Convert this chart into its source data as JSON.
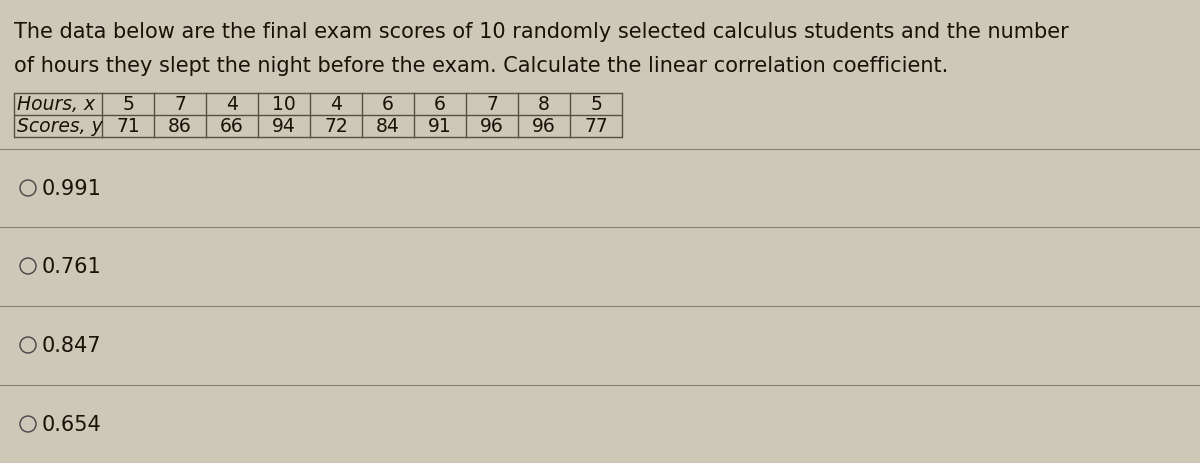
{
  "title_line1": "The data below are the final exam scores of 10 randomly selected calculus students and the number",
  "title_line2": "of hours they slept the night before the exam. Calculate the linear correlation coefficient.",
  "row1_label": "Hours, x",
  "row2_label": "Scores, y",
  "hours": [
    5,
    7,
    4,
    10,
    4,
    6,
    6,
    7,
    8,
    5
  ],
  "scores": [
    71,
    86,
    66,
    94,
    72,
    84,
    91,
    96,
    96,
    77
  ],
  "options": [
    "0.991",
    "0.761",
    "0.847",
    "0.654"
  ],
  "bg_color": "#cec8b8",
  "text_color": "#1a1208",
  "line_color": "#888070",
  "table_line_color": "#555040",
  "font_size_title": 15.0,
  "font_size_table": 13.5,
  "font_size_options": 15.0,
  "fig_width": 12.0,
  "fig_height": 4.64,
  "dpi": 100
}
